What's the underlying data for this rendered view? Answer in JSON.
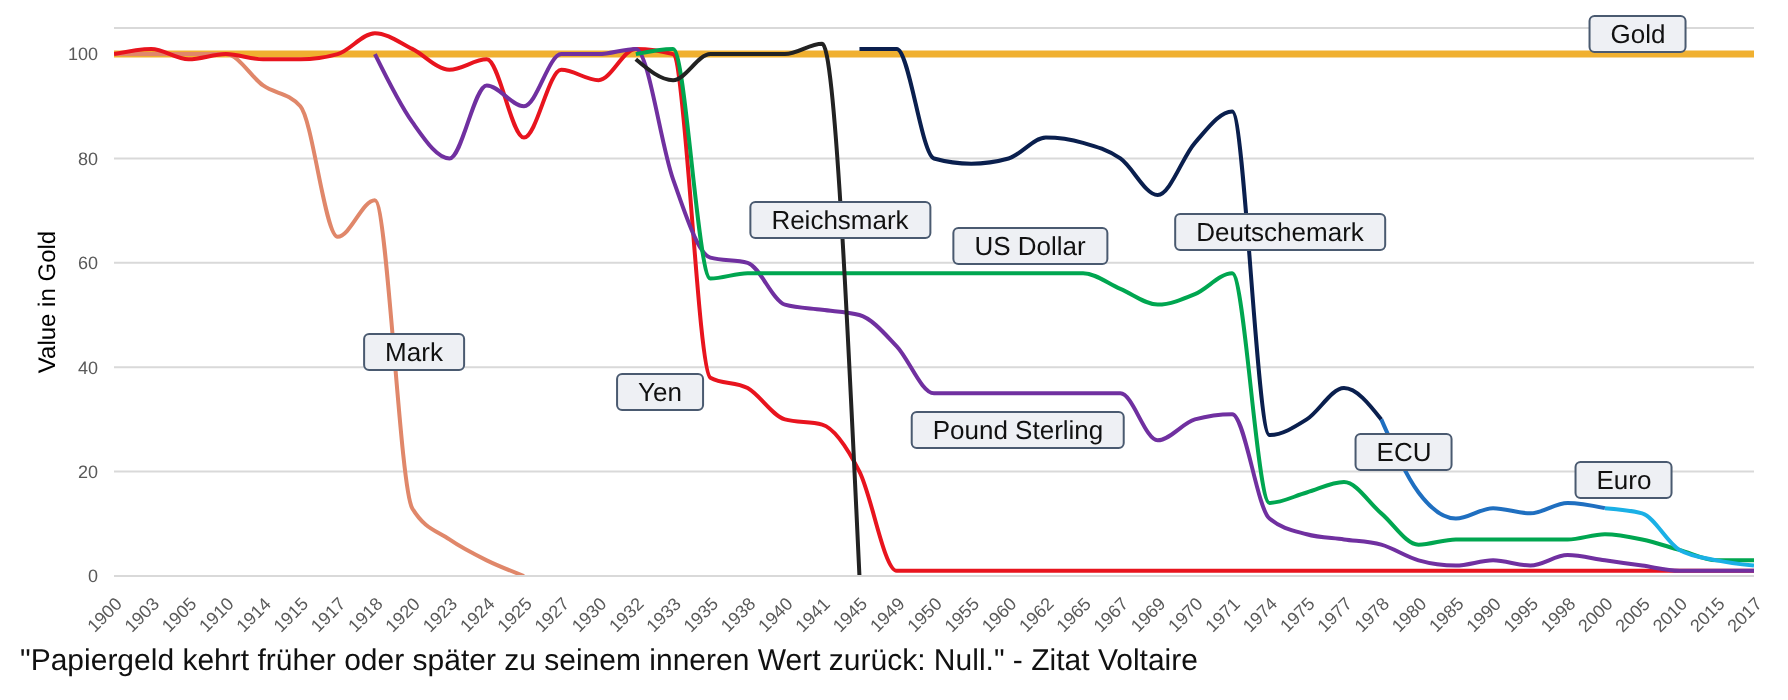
{
  "chart_data": {
    "type": "line",
    "ylabel": "Value in Gold",
    "categories": [
      "1900",
      "1903",
      "1905",
      "1910",
      "1914",
      "1915",
      "1917",
      "1918",
      "1920",
      "1923",
      "1924",
      "1925",
      "1927",
      "1930",
      "1932",
      "1933",
      "1935",
      "1938",
      "1940",
      "1941",
      "1945",
      "1949",
      "1950",
      "1955",
      "1960",
      "1962",
      "1965",
      "1967",
      "1969",
      "1970",
      "1971",
      "1974",
      "1975",
      "1977",
      "1978",
      "1980",
      "1985",
      "1990",
      "1995",
      "1998",
      "2000",
      "2005",
      "2010",
      "2015",
      "2017"
    ],
    "ylim": [
      0,
      105
    ],
    "yticks": [
      0,
      20,
      40,
      60,
      80,
      100
    ],
    "grid": "y",
    "legend": false,
    "marker": "none",
    "line_style": "solid",
    "series": [
      {
        "name": "Gold",
        "color": "#f0b030",
        "values": [
          100,
          100,
          100,
          100,
          100,
          100,
          100,
          100,
          100,
          100,
          100,
          100,
          100,
          100,
          100,
          100,
          100,
          100,
          100,
          100,
          100,
          100,
          100,
          100,
          100,
          100,
          100,
          100,
          100,
          100,
          100,
          100,
          100,
          100,
          100,
          100,
          100,
          100,
          100,
          100,
          100,
          100,
          100,
          100,
          100
        ]
      },
      {
        "name": "Mark",
        "color": "#e0876a",
        "values": [
          100,
          100,
          100,
          100,
          94,
          90,
          65,
          72,
          13,
          7,
          3,
          0,
          null,
          null,
          null,
          null,
          null,
          null,
          null,
          null,
          null,
          null,
          null,
          null,
          null,
          null,
          null,
          null,
          null,
          null,
          null,
          null,
          null,
          null,
          null,
          null,
          null,
          null,
          null,
          null,
          null,
          null,
          null,
          null,
          null
        ]
      },
      {
        "name": "Yen",
        "color": "#e8141e",
        "values": [
          100,
          101,
          99,
          100,
          99,
          99,
          100,
          104,
          101,
          97,
          99,
          84,
          97,
          95,
          101,
          100,
          38,
          36,
          30,
          29,
          20,
          1,
          1,
          1,
          1,
          1,
          1,
          1,
          1,
          1,
          1,
          1,
          1,
          1,
          1,
          1,
          1,
          1,
          1,
          1,
          1,
          1,
          1,
          1,
          1
        ]
      },
      {
        "name": "Pound Sterling",
        "color": "#7030a0",
        "values": [
          null,
          null,
          null,
          null,
          null,
          null,
          null,
          100,
          87,
          80,
          94,
          90,
          100,
          100,
          101,
          76,
          61,
          60,
          52,
          51,
          50,
          44,
          35,
          35,
          35,
          35,
          35,
          35,
          26,
          30,
          31,
          11,
          8,
          7,
          6,
          3,
          2,
          3,
          2,
          4,
          3,
          2,
          1,
          1,
          1
        ]
      },
      {
        "name": "US Dollar",
        "color": "#00a650",
        "values": [
          null,
          null,
          null,
          null,
          null,
          null,
          null,
          null,
          null,
          null,
          null,
          null,
          null,
          null,
          100,
          101,
          57,
          58,
          58,
          58,
          58,
          58,
          58,
          58,
          58,
          58,
          58,
          55,
          52,
          54,
          58,
          14,
          16,
          18,
          12,
          6,
          7,
          7,
          7,
          7,
          8,
          7,
          5,
          3,
          3
        ]
      },
      {
        "name": "Reichsmark",
        "color": "#222222",
        "values": [
          null,
          null,
          null,
          null,
          null,
          null,
          null,
          null,
          null,
          null,
          null,
          null,
          null,
          null,
          99,
          95,
          100,
          100,
          100,
          102,
          0,
          null,
          null,
          null,
          null,
          null,
          null,
          null,
          null,
          null,
          null,
          null,
          null,
          null,
          null,
          null,
          null,
          null,
          null,
          null,
          null,
          null,
          null,
          null,
          null
        ]
      },
      {
        "name": "Deutschemark",
        "color": "#0a1f4e",
        "values": [
          null,
          null,
          null,
          null,
          null,
          null,
          null,
          null,
          null,
          null,
          null,
          null,
          null,
          null,
          null,
          null,
          null,
          null,
          null,
          null,
          101,
          101,
          80,
          79,
          80,
          84,
          83,
          80,
          73,
          83,
          89,
          27,
          30,
          36,
          30,
          null,
          null,
          null,
          null,
          null,
          null,
          null,
          null,
          null,
          null
        ]
      },
      {
        "name": "ECU",
        "color": "#1f6fc0",
        "values": [
          null,
          null,
          null,
          null,
          null,
          null,
          null,
          null,
          null,
          null,
          null,
          null,
          null,
          null,
          null,
          null,
          null,
          null,
          null,
          null,
          null,
          null,
          null,
          null,
          null,
          null,
          null,
          null,
          null,
          null,
          null,
          null,
          null,
          null,
          30,
          16,
          11,
          13,
          12,
          14,
          13,
          null,
          null,
          null,
          null
        ]
      },
      {
        "name": "Euro",
        "color": "#1ab0e6",
        "values": [
          null,
          null,
          null,
          null,
          null,
          null,
          null,
          null,
          null,
          null,
          null,
          null,
          null,
          null,
          null,
          null,
          null,
          null,
          null,
          null,
          null,
          null,
          null,
          null,
          null,
          null,
          null,
          null,
          null,
          null,
          null,
          null,
          null,
          null,
          null,
          null,
          null,
          null,
          null,
          null,
          13,
          12,
          5,
          3,
          2
        ]
      }
    ],
    "annotations": [
      "\"Papiergeld kehrt früher oder später zu seinem inneren Wert zurück: Null.\" - Zitat Voltaire"
    ]
  }
}
